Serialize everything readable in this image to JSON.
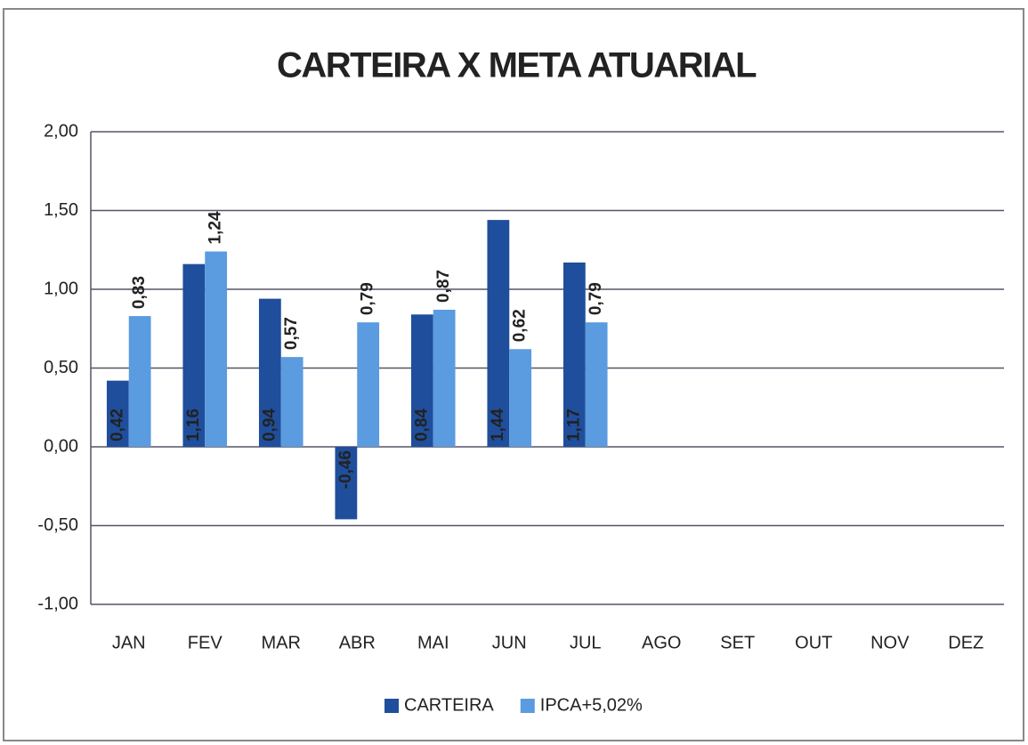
{
  "chart_data": {
    "type": "bar",
    "title": "CARTEIRA X META ATUARIAL",
    "categories": [
      "JAN",
      "FEV",
      "MAR",
      "ABR",
      "MAI",
      "JUN",
      "JUL",
      "AGO",
      "SET",
      "OUT",
      "NOV",
      "DEZ"
    ],
    "series": [
      {
        "name": "CARTEIRA",
        "color": "#1f4e9c",
        "values": [
          0.42,
          1.16,
          0.94,
          -0.46,
          0.84,
          1.44,
          1.17,
          null,
          null,
          null,
          null,
          null
        ],
        "value_labels": [
          "0,42",
          "1,16",
          "0,94",
          "-0,46",
          "0,84",
          "1,44",
          "1,17",
          null,
          null,
          null,
          null,
          null
        ]
      },
      {
        "name": "IPCA+5,02%",
        "color": "#5b9be0",
        "values": [
          0.83,
          1.24,
          0.57,
          0.79,
          0.87,
          0.62,
          0.79,
          null,
          null,
          null,
          null,
          null
        ],
        "value_labels": [
          "0,83",
          "1,24",
          "0,57",
          "0,79",
          "0,87",
          "0,62",
          "0,79",
          null,
          null,
          null,
          null,
          null
        ]
      }
    ],
    "ylim": [
      -1,
      2
    ],
    "yticks": [
      {
        "value": -1,
        "label": "-1,00"
      },
      {
        "value": -0.5,
        "label": "-0,50"
      },
      {
        "value": 0,
        "label": "0,00"
      },
      {
        "value": 0.5,
        "label": "0,50"
      },
      {
        "value": 1,
        "label": "1,00"
      },
      {
        "value": 1.5,
        "label": "1,50"
      },
      {
        "value": 2,
        "label": "2,00"
      }
    ],
    "grid": true,
    "legend": "bottom"
  }
}
